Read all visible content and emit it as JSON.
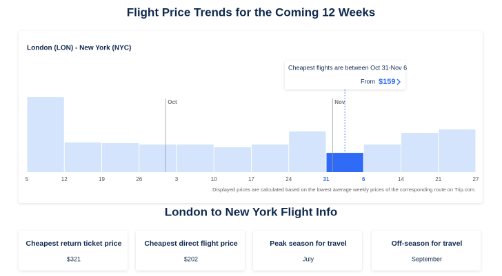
{
  "title": "Flight Price Trends for the Coming 12 Weeks",
  "chart_data": {
    "type": "bar",
    "subtitle": "London (LON) - New York (NYC)",
    "week_edges": [
      "5",
      "12",
      "19",
      "26",
      "3",
      "10",
      "17",
      "24",
      "31",
      "6",
      "14",
      "21",
      "27"
    ],
    "values": [
      620,
      245,
      239,
      228,
      228,
      205,
      228,
      336,
      159,
      228,
      324,
      353
    ],
    "value_labels": [
      null,
      null,
      null,
      null,
      null,
      null,
      null,
      null,
      "$159",
      null,
      null,
      null
    ],
    "ylim": [
      0,
      740
    ],
    "color": "#d3e4fc",
    "highlight": 8,
    "highlight_color": "#2f6bf6",
    "months": [
      "Oct",
      "Nov"
    ],
    "tooltip": {
      "text": "Cheapest flights are between Oct 31-Nov 6",
      "from": "From"
    },
    "note": "Displayed prices are calculated based on the lowest average weekly prices of the corresponding route on Trip.com."
  },
  "info": {
    "title": "London to New York Flight Info",
    "cards": [
      {
        "label": "Cheapest return ticket price",
        "value": "$321"
      },
      {
        "label": "Cheapest direct flight price",
        "value": "$202"
      },
      {
        "label": "Peak season for travel",
        "value": "July"
      },
      {
        "label": "Off-season for travel",
        "value": "September"
      }
    ]
  }
}
